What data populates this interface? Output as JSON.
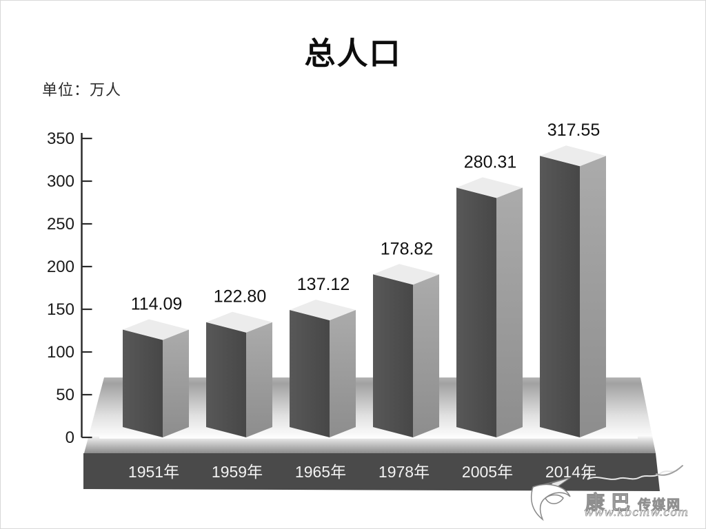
{
  "page": {
    "title": "总人口",
    "unit_label": "单位：万人",
    "background": "#ffffff"
  },
  "chart_data": {
    "type": "bar",
    "style": "3d-column-grayscale",
    "title": "总人口",
    "unit": "万人",
    "categories": [
      "1951年",
      "1959年",
      "1965年",
      "1978年",
      "2005年",
      "2014年"
    ],
    "values": [
      114.09,
      122.8,
      137.12,
      178.82,
      280.31,
      317.55
    ],
    "value_labels": [
      "114.09",
      "122.80",
      "137.12",
      "178.82",
      "280.31",
      "317.55"
    ],
    "xlabel": "",
    "ylabel": "",
    "ylim": [
      0,
      350
    ],
    "yticks": [
      0,
      50,
      100,
      150,
      200,
      250,
      300,
      350
    ],
    "grid": false,
    "legend": false,
    "colors": {
      "bar_front": "#4d4d4d",
      "bar_front_light": "#585858",
      "bar_front_dark": "#474747",
      "bar_side_top": "#ababab",
      "bar_side_bottom": "#8d8d8d",
      "bar_top": "#ececec",
      "base_band": "#4a4a4a",
      "floor_dark": "#9a9a9a",
      "floor_light": "#fbfbfb",
      "baseline_line": "#fdfdfd",
      "axis": "#2b2b2b",
      "tick_text": "#1b1b1b",
      "value_text": "#101010",
      "category_text": "#f2f2f2"
    }
  },
  "watermark": {
    "logo": "leaf-swoosh-logo",
    "name_large": "康巴",
    "name_small": "传媒网",
    "url": "www.kbcmw.com"
  }
}
